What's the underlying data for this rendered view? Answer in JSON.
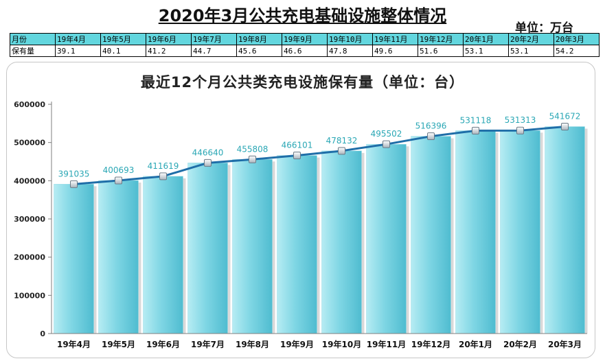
{
  "page": {
    "title": "2020年3月公共充电基础设施整体情况",
    "unit": "单位：万台"
  },
  "summary_table": {
    "row1_label": "月份",
    "row2_label": "保有量",
    "months": [
      "19年4月",
      "19年5月",
      "19年6月",
      "19年7月",
      "19年8月",
      "19年9月",
      "19年10月",
      "19年11月",
      "19年12月",
      "20年1月",
      "20年2月",
      "20年3月"
    ],
    "values": [
      "39.1",
      "40.1",
      "41.2",
      "44.7",
      "45.6",
      "46.6",
      "47.8",
      "49.6",
      "51.6",
      "53.1",
      "53.1",
      "54.2"
    ]
  },
  "colors": {
    "bar_fill": "#7fd6e4",
    "line": "#1f6ea8",
    "header_fill": "#62d6de",
    "data_label": "#2aa7b5"
  },
  "chart_data": {
    "type": "bar",
    "title": "最近12个月公共类充电设施保有量（单位：台）",
    "categories": [
      "19年4月",
      "19年5月",
      "19年6月",
      "19年7月",
      "19年8月",
      "19年9月",
      "19年10月",
      "19年11月",
      "19年12月",
      "20年1月",
      "20年2月",
      "20年3月"
    ],
    "series": [
      {
        "values": [
          391035,
          400693,
          411619,
          446640,
          455808,
          466101,
          478132,
          495502,
          516396,
          531118,
          531313,
          541672
        ]
      }
    ],
    "overlay_line": true,
    "ylim": [
      0,
      600000
    ],
    "yticks": [
      0,
      100000,
      200000,
      300000,
      400000,
      500000,
      600000
    ],
    "grid": false,
    "legend": "none"
  }
}
